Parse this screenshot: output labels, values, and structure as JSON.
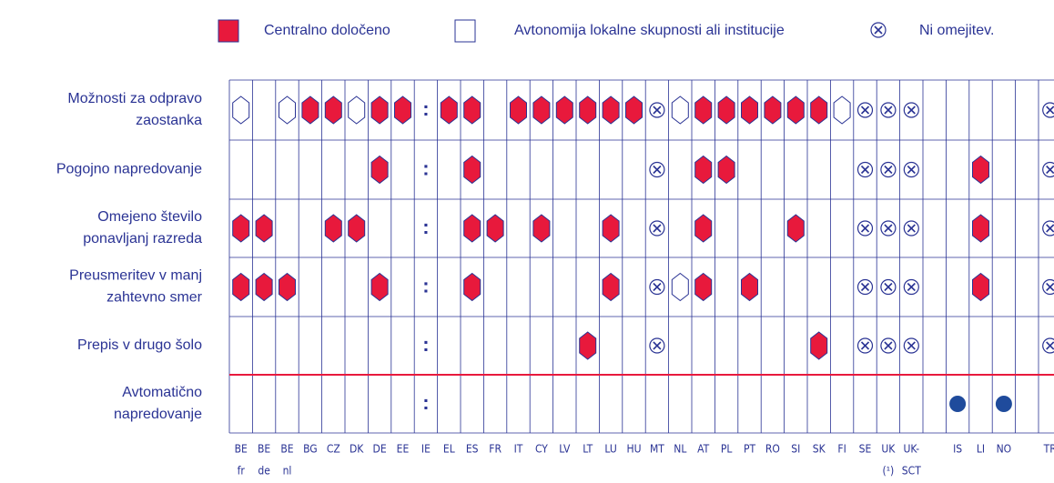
{
  "legend": [
    {
      "symbol": "C",
      "label": "Centralno določeno"
    },
    {
      "symbol": "A",
      "label": "Avtonomija lokalne skupnosti ali institucije"
    },
    {
      "symbol": "N",
      "label": "Ni omejitev."
    }
  ],
  "columns": [
    [
      "BE",
      "fr"
    ],
    [
      "BE",
      "de"
    ],
    [
      "BE",
      "nl"
    ],
    [
      "BG"
    ],
    [
      "CZ"
    ],
    [
      "DK"
    ],
    [
      "DE"
    ],
    [
      "EE"
    ],
    [
      "IE"
    ],
    [
      "EL"
    ],
    [
      "ES"
    ],
    [
      "FR"
    ],
    [
      "IT"
    ],
    [
      "CY"
    ],
    [
      "LV"
    ],
    [
      "LT"
    ],
    [
      "LU"
    ],
    [
      "HU"
    ],
    [
      "MT"
    ],
    [
      "NL"
    ],
    [
      "AT"
    ],
    [
      "PL"
    ],
    [
      "PT"
    ],
    [
      "RO"
    ],
    [
      "SI"
    ],
    [
      "SK"
    ],
    [
      "FI"
    ],
    [
      "SE"
    ],
    [
      "UK",
      "(¹)"
    ],
    [
      "UK-",
      "SCT"
    ],
    null,
    [
      "IS"
    ],
    [
      "LI"
    ],
    [
      "NO"
    ],
    null,
    [
      "TR"
    ]
  ],
  "rows": [
    {
      "label": [
        "Možnosti za odpravo",
        "zaostanka"
      ],
      "cells": [
        "A",
        null,
        "A",
        "C",
        "C",
        "A",
        "C",
        "C",
        ":",
        "C",
        "C",
        null,
        "C",
        "C",
        "C",
        "C",
        "C",
        "C",
        "N",
        "A",
        "C",
        "C",
        "C",
        "C",
        "C",
        "C",
        "A",
        "N",
        "N",
        "N",
        null,
        null,
        null,
        null,
        null,
        "N"
      ]
    },
    {
      "label": [
        "Pogojno napredovanje"
      ],
      "cells": [
        null,
        null,
        null,
        null,
        null,
        null,
        "C",
        null,
        ":",
        null,
        "C",
        null,
        null,
        null,
        null,
        null,
        null,
        null,
        "N",
        null,
        "C",
        "C",
        null,
        null,
        null,
        null,
        null,
        "N",
        "N",
        "N",
        null,
        null,
        "C",
        null,
        null,
        "N"
      ]
    },
    {
      "label": [
        "Omejeno število",
        "ponavljanj razreda"
      ],
      "cells": [
        "C",
        "C",
        null,
        null,
        "C",
        "C",
        null,
        null,
        ":",
        null,
        "C",
        "C",
        null,
        "C",
        null,
        null,
        "C",
        null,
        "N",
        null,
        "C",
        null,
        null,
        null,
        "C",
        null,
        null,
        "N",
        "N",
        "N",
        null,
        null,
        "C",
        null,
        null,
        "N"
      ]
    },
    {
      "label": [
        "Preusmeritev v manj",
        "zahtevno smer"
      ],
      "cells": [
        "C",
        "C",
        "C",
        null,
        null,
        null,
        "C",
        null,
        ":",
        null,
        "C",
        null,
        null,
        null,
        null,
        null,
        "C",
        null,
        "N",
        "A",
        "C",
        null,
        "C",
        null,
        null,
        null,
        null,
        "N",
        "N",
        "N",
        null,
        null,
        "C",
        null,
        null,
        "N"
      ]
    },
    {
      "label": [
        "Prepis v drugo šolo"
      ],
      "cells": [
        null,
        null,
        null,
        null,
        null,
        null,
        null,
        null,
        ":",
        null,
        null,
        null,
        null,
        null,
        null,
        "C",
        null,
        null,
        "N",
        null,
        null,
        null,
        null,
        null,
        null,
        "C",
        null,
        "N",
        "N",
        "N",
        null,
        null,
        null,
        null,
        null,
        "N"
      ]
    },
    {
      "label": [
        "Avtomatično",
        "napredovanje"
      ],
      "cells": [
        null,
        null,
        null,
        null,
        null,
        null,
        null,
        null,
        ":",
        null,
        null,
        null,
        null,
        null,
        null,
        null,
        null,
        null,
        null,
        null,
        null,
        null,
        null,
        null,
        null,
        null,
        null,
        null,
        null,
        null,
        null,
        "D",
        null,
        "D",
        null,
        null
      ]
    }
  ]
}
